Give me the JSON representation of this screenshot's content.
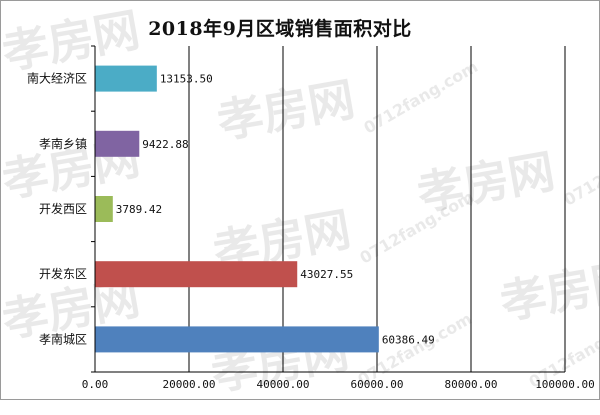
{
  "chart_data": {
    "type": "bar",
    "orientation": "horizontal",
    "title": "2018年9月区域销售面积对比",
    "categories": [
      "南大经济区",
      "孝南乡镇",
      "开发西区",
      "开发东区",
      "孝南城区"
    ],
    "values": [
      13153.5,
      9422.88,
      3789.42,
      43027.55,
      60386.49
    ],
    "value_labels": [
      "13153.50",
      "9422.88",
      "3789.42",
      "43027.55",
      "60386.49"
    ],
    "colors": [
      "#4bacc6",
      "#8064a2",
      "#9bbb59",
      "#c0504d",
      "#4f81bd"
    ],
    "xlim": [
      0,
      100000
    ],
    "xticks": [
      0,
      20000,
      40000,
      60000,
      80000,
      100000
    ],
    "xtick_labels": [
      "0.00",
      "20000.00",
      "40000.00",
      "60000.00",
      "80000.00",
      "100000.00"
    ],
    "xlabel": "",
    "ylabel": "",
    "grid": "vertical",
    "legend": "none"
  },
  "watermark": {
    "brand": "孝房网",
    "domain": "0712fang.com"
  }
}
